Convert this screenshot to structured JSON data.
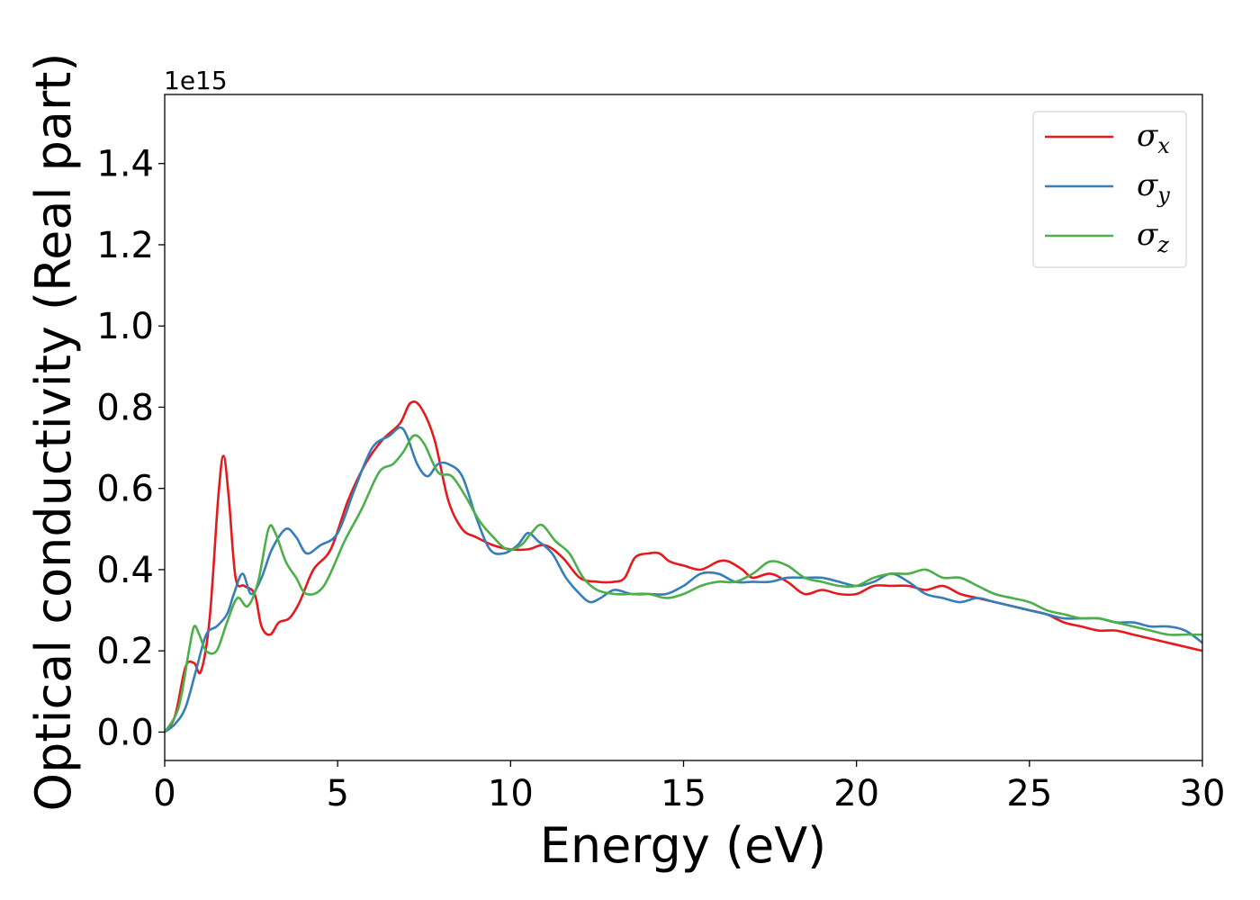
{
  "chart_data": {
    "type": "line",
    "xlabel": "Energy (eV)",
    "ylabel": "Optical conductivity (Real part)",
    "y_offset_label": "1e15",
    "xlim": [
      0,
      30
    ],
    "ylim": [
      -0.07,
      1.57
    ],
    "x_ticks": [
      0,
      5,
      10,
      15,
      20,
      25,
      30
    ],
    "x_tick_labels": [
      "0",
      "5",
      "10",
      "15",
      "20",
      "25",
      "30"
    ],
    "y_ticks": [
      0.0,
      0.2,
      0.4,
      0.6,
      0.8,
      1.0,
      1.2,
      1.4
    ],
    "y_tick_labels": [
      "0.0",
      "0.2",
      "0.4",
      "0.6",
      "0.8",
      "1.0",
      "1.2",
      "1.4"
    ],
    "grid": false,
    "legend_position": "top-right",
    "series": [
      {
        "name": "σx",
        "symbol": "σ",
        "subscript": "x",
        "color": "#e41a1c",
        "x": [
          0,
          0.3,
          0.6,
          0.85,
          1.05,
          1.3,
          1.55,
          1.7,
          1.85,
          2.05,
          2.3,
          2.6,
          2.8,
          3.05,
          3.3,
          3.6,
          3.9,
          4.3,
          4.8,
          5.3,
          5.8,
          6.3,
          6.8,
          7.1,
          7.4,
          7.8,
          8.2,
          8.6,
          9.0,
          9.5,
          10.0,
          10.5,
          11.0,
          11.5,
          12.0,
          12.5,
          13.0,
          13.3,
          13.6,
          14.0,
          14.3,
          14.6,
          15.0,
          15.5,
          16.0,
          16.3,
          16.7,
          17.0,
          17.5,
          18.0,
          18.5,
          19.0,
          19.5,
          20.0,
          20.5,
          21.0,
          21.5,
          22.0,
          22.5,
          23.0,
          23.5,
          24.0,
          24.5,
          25.0,
          25.5,
          26.0,
          26.5,
          27.0,
          27.5,
          28.0,
          28.5,
          29.0,
          29.5,
          30.0
        ],
        "y": [
          0,
          0.04,
          0.16,
          0.17,
          0.15,
          0.28,
          0.58,
          0.68,
          0.58,
          0.38,
          0.36,
          0.34,
          0.26,
          0.24,
          0.27,
          0.28,
          0.32,
          0.4,
          0.45,
          0.57,
          0.66,
          0.72,
          0.76,
          0.81,
          0.8,
          0.72,
          0.57,
          0.5,
          0.48,
          0.46,
          0.45,
          0.45,
          0.46,
          0.43,
          0.38,
          0.37,
          0.37,
          0.38,
          0.43,
          0.44,
          0.44,
          0.42,
          0.41,
          0.4,
          0.42,
          0.42,
          0.4,
          0.38,
          0.39,
          0.37,
          0.34,
          0.35,
          0.34,
          0.34,
          0.36,
          0.36,
          0.36,
          0.35,
          0.36,
          0.34,
          0.33,
          0.32,
          0.31,
          0.3,
          0.29,
          0.27,
          0.26,
          0.25,
          0.25,
          0.24,
          0.23,
          0.22,
          0.21,
          0.2
        ]
      },
      {
        "name": "σy",
        "symbol": "σ",
        "subscript": "y",
        "color": "#377eb8",
        "x": [
          0,
          0.3,
          0.6,
          0.9,
          1.2,
          1.5,
          1.8,
          2.0,
          2.25,
          2.5,
          2.8,
          3.1,
          3.5,
          3.8,
          4.1,
          4.5,
          5.0,
          5.5,
          6.0,
          6.5,
          6.8,
          7.0,
          7.3,
          7.6,
          7.9,
          8.2,
          8.6,
          9.0,
          9.4,
          9.8,
          10.2,
          10.5,
          10.8,
          11.2,
          11.6,
          12.0,
          12.3,
          12.6,
          13.0,
          13.5,
          14.0,
          14.5,
          15.0,
          15.5,
          16.0,
          16.5,
          17.0,
          17.5,
          18.0,
          18.5,
          19.0,
          19.5,
          20.0,
          20.5,
          21.0,
          21.5,
          22.0,
          22.5,
          23.0,
          23.5,
          24.0,
          24.5,
          25.0,
          25.5,
          26.0,
          26.5,
          27.0,
          27.5,
          28.0,
          28.5,
          29.0,
          29.5,
          30.0
        ],
        "y": [
          0,
          0.02,
          0.06,
          0.15,
          0.24,
          0.26,
          0.29,
          0.34,
          0.39,
          0.34,
          0.38,
          0.45,
          0.5,
          0.48,
          0.44,
          0.46,
          0.49,
          0.6,
          0.7,
          0.73,
          0.75,
          0.73,
          0.66,
          0.63,
          0.66,
          0.66,
          0.63,
          0.53,
          0.45,
          0.44,
          0.46,
          0.49,
          0.47,
          0.44,
          0.38,
          0.34,
          0.32,
          0.33,
          0.35,
          0.34,
          0.34,
          0.34,
          0.36,
          0.39,
          0.39,
          0.37,
          0.37,
          0.37,
          0.38,
          0.38,
          0.38,
          0.37,
          0.36,
          0.37,
          0.39,
          0.37,
          0.34,
          0.33,
          0.32,
          0.33,
          0.32,
          0.31,
          0.3,
          0.29,
          0.28,
          0.28,
          0.28,
          0.27,
          0.27,
          0.26,
          0.26,
          0.25,
          0.22
        ]
      },
      {
        "name": "σz",
        "symbol": "σ",
        "subscript": "z",
        "color": "#4daf4a",
        "x": [
          0,
          0.4,
          0.7,
          0.85,
          1.0,
          1.2,
          1.5,
          1.8,
          2.1,
          2.4,
          2.7,
          3.0,
          3.2,
          3.5,
          3.8,
          4.1,
          4.6,
          5.2,
          5.7,
          6.2,
          6.6,
          6.9,
          7.2,
          7.5,
          7.9,
          8.3,
          8.7,
          9.1,
          9.5,
          9.9,
          10.3,
          10.6,
          10.9,
          11.3,
          11.7,
          12.1,
          12.5,
          13.0,
          13.5,
          14.0,
          14.5,
          15.0,
          15.5,
          16.0,
          16.5,
          17.0,
          17.5,
          18.0,
          18.5,
          19.0,
          19.5,
          20.0,
          20.5,
          21.0,
          21.5,
          22.0,
          22.5,
          23.0,
          23.5,
          24.0,
          24.5,
          25.0,
          25.5,
          26.0,
          26.5,
          27.0,
          27.5,
          28.0,
          28.5,
          29.0,
          29.5,
          30.0
        ],
        "y": [
          0,
          0.06,
          0.2,
          0.26,
          0.24,
          0.2,
          0.2,
          0.27,
          0.33,
          0.31,
          0.37,
          0.5,
          0.49,
          0.42,
          0.38,
          0.34,
          0.36,
          0.47,
          0.55,
          0.64,
          0.66,
          0.69,
          0.73,
          0.71,
          0.64,
          0.63,
          0.58,
          0.52,
          0.48,
          0.45,
          0.46,
          0.49,
          0.51,
          0.47,
          0.44,
          0.38,
          0.35,
          0.34,
          0.34,
          0.34,
          0.33,
          0.34,
          0.36,
          0.37,
          0.37,
          0.39,
          0.42,
          0.41,
          0.38,
          0.37,
          0.36,
          0.36,
          0.38,
          0.39,
          0.39,
          0.4,
          0.38,
          0.38,
          0.36,
          0.34,
          0.33,
          0.32,
          0.3,
          0.29,
          0.28,
          0.28,
          0.27,
          0.26,
          0.25,
          0.24,
          0.24,
          0.24
        ]
      }
    ]
  }
}
